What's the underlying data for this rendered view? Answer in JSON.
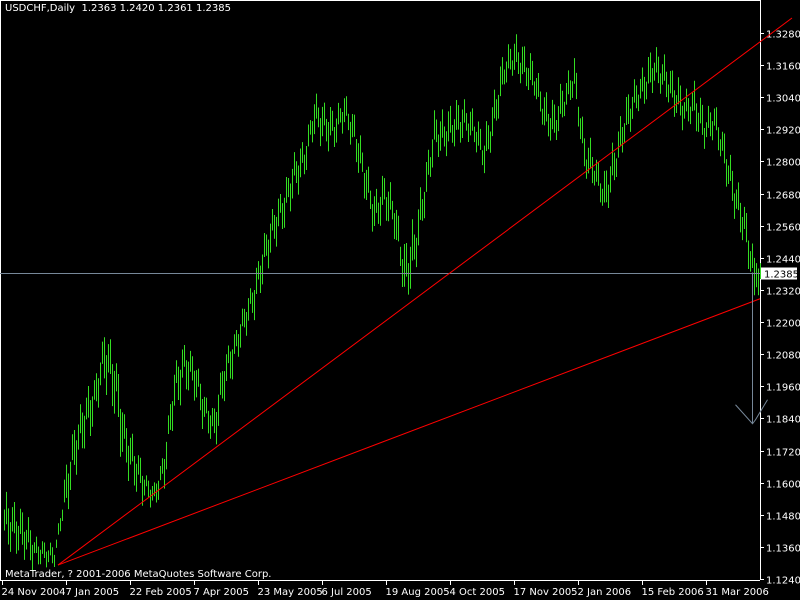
{
  "header": {
    "symbol_period": "USDCHF,Daily",
    "ohlc": "1.2363 1.2420 1.2361 1.2385"
  },
  "footer": {
    "copyright": "MetaTrader, ? 2001-2006 MetaQuotes Software Corp."
  },
  "colors": {
    "background": "#000000",
    "bars": "#33dd22",
    "axis": "#ffffff",
    "trendline": "#ff0000",
    "price_line": "#778899"
  },
  "chart_data": {
    "type": "bar",
    "title": "USDCHF,Daily",
    "ylim": [
      1.124,
      1.328
    ],
    "y_ticks": [
      "1.3280",
      "1.3160",
      "1.3040",
      "1.2920",
      "1.2800",
      "1.2680",
      "1.2560",
      "1.2440",
      "1.2320",
      "1.2200",
      "1.2080",
      "1.1960",
      "1.1840",
      "1.1720",
      "1.1600",
      "1.1480",
      "1.1360",
      "1.1240"
    ],
    "x_tick_labels": [
      "24 Nov 2004",
      "7 Jan 2005",
      "22 Feb 2005",
      "7 Apr 2005",
      "23 May 2005",
      "6 Jul 2005",
      "19 Aug 2005",
      "4 Oct 2005",
      "17 Nov 2005",
      "2 Jan 2006",
      "15 Feb 2006",
      "31 Mar 2006"
    ],
    "x_tick_bar_index": [
      0,
      32,
      64,
      96,
      128,
      160,
      192,
      224,
      256,
      288,
      320,
      352
    ],
    "weekly_ranges_low_high": [
      [
        1.1348,
        1.1573
      ],
      [
        1.133,
        1.1535
      ],
      [
        1.1311,
        1.1498
      ],
      [
        1.1292,
        1.1404
      ],
      [
        1.1285,
        1.1386
      ],
      [
        1.1285,
        1.1367
      ],
      [
        1.1423,
        1.1647
      ],
      [
        1.161,
        1.1834
      ],
      [
        1.1722,
        1.1946
      ],
      [
        1.1816,
        1.2002
      ],
      [
        1.1946,
        1.2208
      ],
      [
        1.1834,
        1.2133
      ],
      [
        1.1647,
        1.1872
      ],
      [
        1.1573,
        1.1759
      ],
      [
        1.1535,
        1.1647
      ],
      [
        1.1487,
        1.161
      ],
      [
        1.1573,
        1.1759
      ],
      [
        1.1834,
        1.2058
      ],
      [
        1.1946,
        1.2133
      ],
      [
        1.1909,
        1.2096
      ],
      [
        1.1797,
        1.1946
      ],
      [
        1.1703,
        1.1909
      ],
      [
        1.1909,
        1.2096
      ],
      [
        1.2021,
        1.217
      ],
      [
        1.2133,
        1.2283
      ],
      [
        1.2208,
        1.2395
      ],
      [
        1.2357,
        1.2544
      ],
      [
        1.2469,
        1.2656
      ],
      [
        1.2544,
        1.2731
      ],
      [
        1.2656,
        1.2843
      ],
      [
        1.2731,
        1.2881
      ],
      [
        1.2881,
        1.3067
      ],
      [
        1.2843,
        1.303
      ],
      [
        1.2843,
        1.2993
      ],
      [
        1.2918,
        1.3067
      ],
      [
        1.2806,
        1.2993
      ],
      [
        1.2656,
        1.2843
      ],
      [
        1.2507,
        1.2694
      ],
      [
        1.2582,
        1.2768
      ],
      [
        1.2507,
        1.2694
      ],
      [
        1.2238,
        1.2507
      ],
      [
        1.2357,
        1.2582
      ],
      [
        1.2582,
        1.2768
      ],
      [
        1.2806,
        1.2993
      ],
      [
        1.2806,
        1.2993
      ],
      [
        1.2843,
        1.303
      ],
      [
        1.2881,
        1.303
      ],
      [
        1.2843,
        1.2993
      ],
      [
        1.2731,
        1.2918
      ],
      [
        1.2881,
        1.3067
      ],
      [
        1.3067,
        1.3217
      ],
      [
        1.3105,
        1.328
      ],
      [
        1.3067,
        1.3235
      ],
      [
        1.303,
        1.3179
      ],
      [
        1.2881,
        1.3067
      ],
      [
        1.2843,
        1.303
      ],
      [
        1.2955,
        1.3105
      ],
      [
        1.303,
        1.3198
      ],
      [
        1.2731,
        1.2918
      ],
      [
        1.2694,
        1.2843
      ],
      [
        1.2563,
        1.2768
      ],
      [
        1.2694,
        1.2881
      ],
      [
        1.2843,
        1.303
      ],
      [
        1.2955,
        1.3105
      ],
      [
        1.2993,
        1.3179
      ],
      [
        1.3067,
        1.3235
      ],
      [
        1.303,
        1.3198
      ],
      [
        1.2955,
        1.3142
      ],
      [
        1.2918,
        1.3067
      ],
      [
        1.2918,
        1.3105
      ],
      [
        1.2843,
        1.2993
      ],
      [
        1.2881,
        1.303
      ],
      [
        1.2731,
        1.2918
      ],
      [
        1.2582,
        1.2768
      ],
      [
        1.2469,
        1.2656
      ],
      [
        1.23,
        1.244
      ]
    ],
    "last_bar": {
      "open": 1.2363,
      "high": 1.242,
      "low": 1.2361,
      "close": 1.2385
    },
    "current_price": "1.2385",
    "trendlines": [
      {
        "from": {
          "bar": 27,
          "price": 1.1292
        },
        "to": {
          "bar": 394,
          "price": 1.3336
        }
      },
      {
        "from": {
          "bar": 27,
          "price": 1.1292
        },
        "to": {
          "bar": 378,
          "price": 1.2287
        }
      }
    ],
    "arrow": {
      "bar": 374,
      "from_price": 1.2385,
      "to_price": 1.182
    }
  }
}
